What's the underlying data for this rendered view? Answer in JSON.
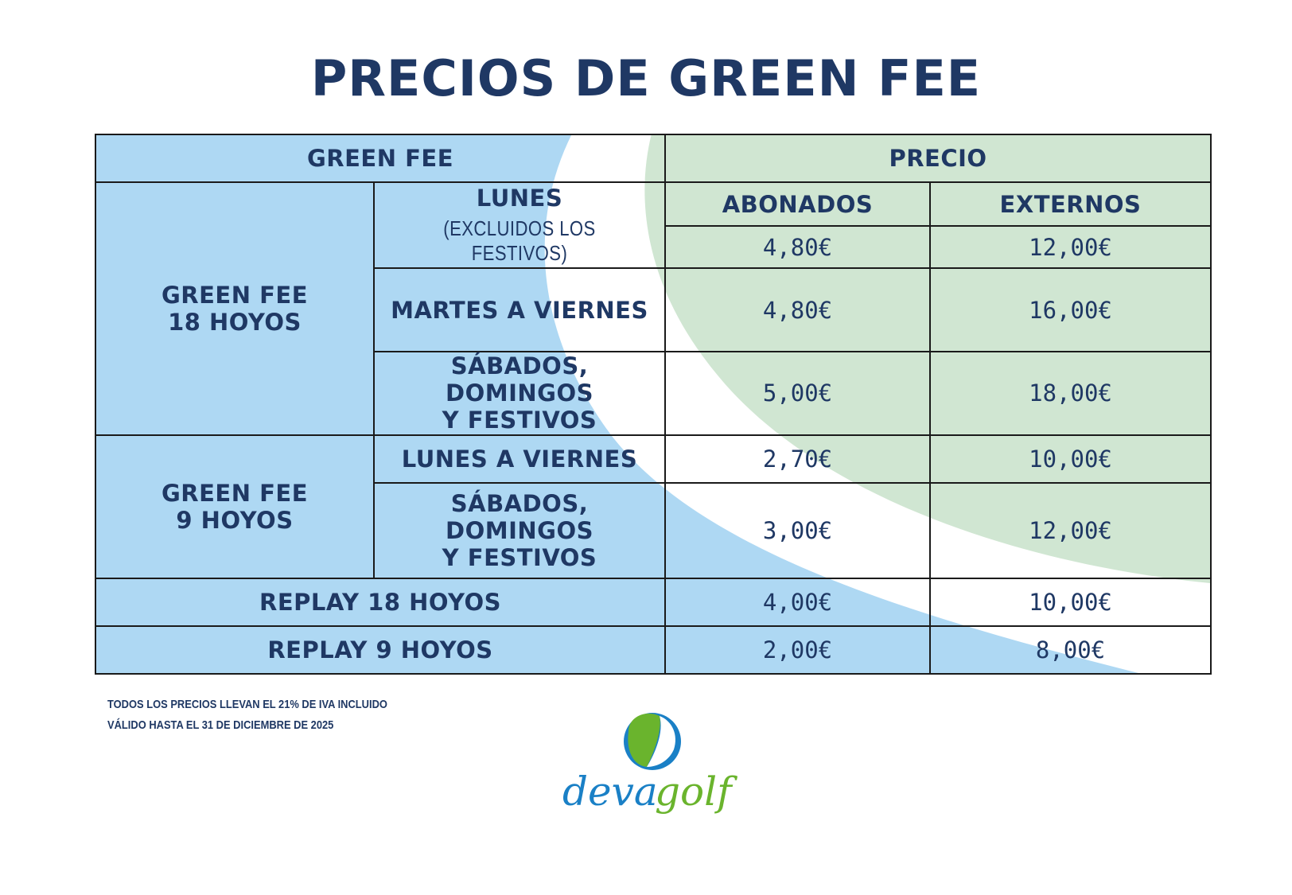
{
  "title": "PRECIOS DE GREEN FEE",
  "table": {
    "header_green_fee": "GREEN FEE",
    "header_precio": "PRECIO",
    "header_abonados": "ABONADOS",
    "header_externos": "EXTERNOS",
    "group_18_line1": "GREEN FEE",
    "group_18_line2": "18 HOYOS",
    "group_9_line1": "GREEN FEE",
    "group_9_line2": "9 HOYOS",
    "rows": [
      {
        "day": "LUNES",
        "day_note": "(EXCLUIDOS LOS FESTIVOS)",
        "abonados": "4,80€",
        "externos": "12,00€"
      },
      {
        "day": "MARTES A VIERNES",
        "abonados": "4,80€",
        "externos": "16,00€"
      },
      {
        "day_line1": "SÁBADOS, DOMINGOS",
        "day_line2": "Y FESTIVOS",
        "abonados": "5,00€",
        "externos": "18,00€"
      },
      {
        "day": "LUNES A VIERNES",
        "abonados": "2,70€",
        "externos": "10,00€"
      },
      {
        "day_line1": "SÁBADOS, DOMINGOS",
        "day_line2": "Y FESTIVOS",
        "abonados": "3,00€",
        "externos": "12,00€"
      },
      {
        "label": "REPLAY 18 HOYOS",
        "abonados": "4,00€",
        "externos": "10,00€"
      },
      {
        "label": "REPLAY 9 HOYOS",
        "abonados": "2,00€",
        "externos": "8,00€"
      }
    ]
  },
  "notes": {
    "line1": "TODOS LOS PRECIOS LLEVAN EL 21% DE IVA INCLUIDO",
    "line2": "VÁLIDO HASTA EL 31 DE DICIEMBRE DE 2025"
  },
  "logo": {
    "text_deva": "deva",
    "text_golf": "golf"
  },
  "colors": {
    "navy": "#1f3864",
    "light_blue": "#aed8f3",
    "light_green": "#d0e6d2",
    "logo_blue": "#1a80c6",
    "logo_green": "#6ab42d"
  }
}
